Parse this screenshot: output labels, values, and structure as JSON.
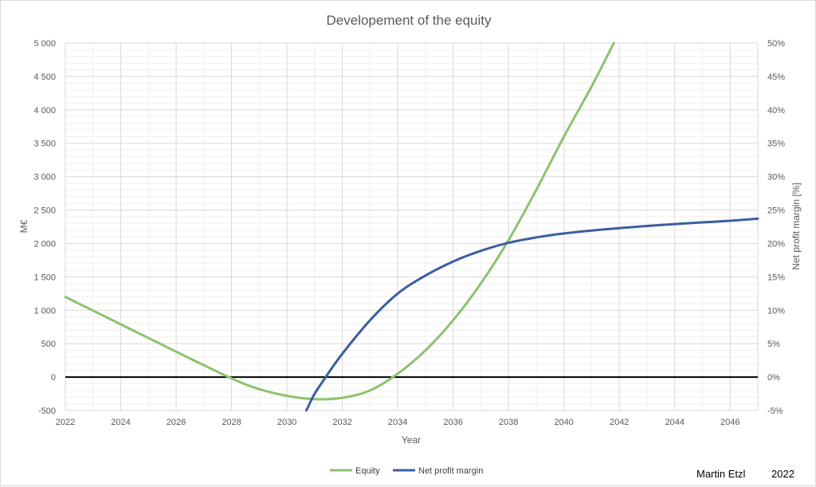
{
  "chart_data": {
    "type": "line",
    "title": "Developement of the equity",
    "xlabel": "Year",
    "ylabel": "M€",
    "y2label": "Net profit margin [%]",
    "xlim": [
      2022,
      2047
    ],
    "ylim": [
      -500,
      5000
    ],
    "y2lim": [
      -5,
      50
    ],
    "x_ticks": [
      "2022",
      "2024",
      "2026",
      "2028",
      "2030",
      "2032",
      "2034",
      "2036",
      "2038",
      "2040",
      "2042",
      "2044",
      "2046"
    ],
    "y_ticks": [
      "-500",
      "0",
      "500",
      "1 000",
      "1 500",
      "2 000",
      "2 500",
      "3 000",
      "3 500",
      "4 000",
      "4 500",
      "5 000"
    ],
    "y2_ticks": [
      "-5%",
      "0%",
      "5%",
      "10%",
      "15%",
      "20%",
      "25%",
      "30%",
      "35%",
      "40%",
      "45%",
      "50%"
    ],
    "grid": true,
    "legend_position": "bottom",
    "colors": {
      "equity": "#8dc26f",
      "margin": "#3a5fa0",
      "zero_line": "#000000",
      "grid": "#d9d9d9"
    },
    "series": [
      {
        "name": "Equity",
        "axis": "left",
        "x": [
          2022,
          2024,
          2026,
          2028,
          2029,
          2030,
          2031,
          2032,
          2033,
          2034,
          2035,
          2036,
          2037,
          2038,
          2039,
          2040,
          2041,
          2041.8
        ],
        "y": [
          1200,
          790,
          380,
          -20,
          -180,
          -280,
          -330,
          -310,
          -200,
          50,
          400,
          850,
          1400,
          2050,
          2800,
          3600,
          4350,
          5000
        ]
      },
      {
        "name": "Net profit margin",
        "axis": "right",
        "x": [
          2030.7,
          2031,
          2031.4,
          2032,
          2033,
          2034,
          2035,
          2036,
          2037,
          2038,
          2039,
          2040,
          2042,
          2044,
          2046,
          2047
        ],
        "y": [
          -5,
          -2.5,
          0,
          3.5,
          8.5,
          12.5,
          15.2,
          17.3,
          18.9,
          20.1,
          20.9,
          21.5,
          22.3,
          22.9,
          23.4,
          23.7
        ]
      }
    ]
  },
  "footer": {
    "author": "Martin Etzl",
    "year": "2022"
  }
}
